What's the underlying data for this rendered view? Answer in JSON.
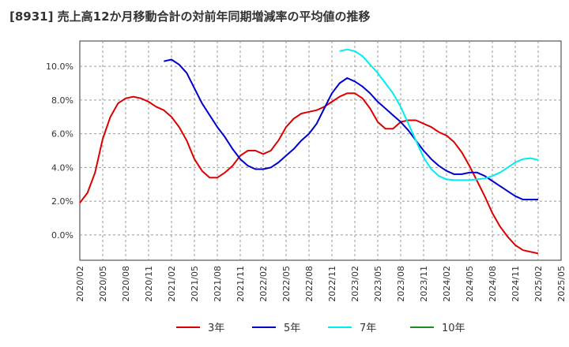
{
  "chart_data": {
    "type": "line",
    "title": "[8931]  売上高12か月移動合計の対前年同期増減率の平均値の推移",
    "xlabel": "",
    "ylabel": "",
    "x_start": "2020/02",
    "x_ticks": [
      "2020/02",
      "2020/05",
      "2020/08",
      "2020/11",
      "2021/02",
      "2021/05",
      "2021/08",
      "2021/11",
      "2022/02",
      "2022/05",
      "2022/08",
      "2022/11",
      "2023/02",
      "2023/05",
      "2023/08",
      "2023/11",
      "2024/02",
      "2024/05",
      "2024/08",
      "2024/11",
      "2025/02",
      "2025/05"
    ],
    "y_ticks": [
      "0.0%",
      "2.0%",
      "4.0%",
      "6.0%",
      "8.0%",
      "10.0%"
    ],
    "y_tick_values": [
      0,
      2,
      4,
      6,
      8,
      10
    ],
    "ylim": [
      -1.5,
      11.5
    ],
    "grid": true,
    "legend_position": "bottom",
    "series": [
      {
        "name": "3年",
        "color": "#dd0000",
        "values": [
          {
            "x": "2020/02",
            "y": 1.9
          },
          {
            "x": "2020/03",
            "y": 2.5
          },
          {
            "x": "2020/04",
            "y": 3.7
          },
          {
            "x": "2020/05",
            "y": 5.7
          },
          {
            "x": "2020/06",
            "y": 7.0
          },
          {
            "x": "2020/07",
            "y": 7.8
          },
          {
            "x": "2020/08",
            "y": 8.1
          },
          {
            "x": "2020/09",
            "y": 8.2
          },
          {
            "x": "2020/10",
            "y": 8.1
          },
          {
            "x": "2020/11",
            "y": 7.9
          },
          {
            "x": "2020/12",
            "y": 7.6
          },
          {
            "x": "2021/01",
            "y": 7.4
          },
          {
            "x": "2021/02",
            "y": 7.0
          },
          {
            "x": "2021/03",
            "y": 6.4
          },
          {
            "x": "2021/04",
            "y": 5.6
          },
          {
            "x": "2021/05",
            "y": 4.5
          },
          {
            "x": "2021/06",
            "y": 3.8
          },
          {
            "x": "2021/07",
            "y": 3.4
          },
          {
            "x": "2021/08",
            "y": 3.4
          },
          {
            "x": "2021/09",
            "y": 3.7
          },
          {
            "x": "2021/10",
            "y": 4.1
          },
          {
            "x": "2021/11",
            "y": 4.7
          },
          {
            "x": "2021/12",
            "y": 5.0
          },
          {
            "x": "2022/01",
            "y": 5.0
          },
          {
            "x": "2022/02",
            "y": 4.8
          },
          {
            "x": "2022/03",
            "y": 5.0
          },
          {
            "x": "2022/04",
            "y": 5.6
          },
          {
            "x": "2022/05",
            "y": 6.4
          },
          {
            "x": "2022/06",
            "y": 6.9
          },
          {
            "x": "2022/07",
            "y": 7.2
          },
          {
            "x": "2022/08",
            "y": 7.3
          },
          {
            "x": "2022/09",
            "y": 7.4
          },
          {
            "x": "2022/10",
            "y": 7.6
          },
          {
            "x": "2022/11",
            "y": 7.9
          },
          {
            "x": "2022/12",
            "y": 8.2
          },
          {
            "x": "2023/01",
            "y": 8.4
          },
          {
            "x": "2023/02",
            "y": 8.4
          },
          {
            "x": "2023/03",
            "y": 8.1
          },
          {
            "x": "2023/04",
            "y": 7.5
          },
          {
            "x": "2023/05",
            "y": 6.7
          },
          {
            "x": "2023/06",
            "y": 6.3
          },
          {
            "x": "2023/07",
            "y": 6.3
          },
          {
            "x": "2023/08",
            "y": 6.7
          },
          {
            "x": "2023/09",
            "y": 6.8
          },
          {
            "x": "2023/10",
            "y": 6.8
          },
          {
            "x": "2023/11",
            "y": 6.6
          },
          {
            "x": "2023/12",
            "y": 6.4
          },
          {
            "x": "2024/01",
            "y": 6.1
          },
          {
            "x": "2024/02",
            "y": 5.9
          },
          {
            "x": "2024/03",
            "y": 5.5
          },
          {
            "x": "2024/04",
            "y": 4.9
          },
          {
            "x": "2024/05",
            "y": 4.1
          },
          {
            "x": "2024/06",
            "y": 3.2
          },
          {
            "x": "2024/07",
            "y": 2.3
          },
          {
            "x": "2024/08",
            "y": 1.3
          },
          {
            "x": "2024/09",
            "y": 0.5
          },
          {
            "x": "2024/10",
            "y": -0.1
          },
          {
            "x": "2024/11",
            "y": -0.6
          },
          {
            "x": "2024/12",
            "y": -0.9
          },
          {
            "x": "2025/01",
            "y": -1.0
          },
          {
            "x": "2025/02",
            "y": -1.1
          }
        ]
      },
      {
        "name": "5年",
        "color": "#0000cc",
        "values": [
          {
            "x": "2021/01",
            "y": 10.3
          },
          {
            "x": "2021/02",
            "y": 10.4
          },
          {
            "x": "2021/03",
            "y": 10.1
          },
          {
            "x": "2021/04",
            "y": 9.6
          },
          {
            "x": "2021/05",
            "y": 8.7
          },
          {
            "x": "2021/06",
            "y": 7.8
          },
          {
            "x": "2021/07",
            "y": 7.1
          },
          {
            "x": "2021/08",
            "y": 6.4
          },
          {
            "x": "2021/09",
            "y": 5.8
          },
          {
            "x": "2021/10",
            "y": 5.1
          },
          {
            "x": "2021/11",
            "y": 4.5
          },
          {
            "x": "2021/12",
            "y": 4.1
          },
          {
            "x": "2022/01",
            "y": 3.9
          },
          {
            "x": "2022/02",
            "y": 3.9
          },
          {
            "x": "2022/03",
            "y": 4.0
          },
          {
            "x": "2022/04",
            "y": 4.3
          },
          {
            "x": "2022/05",
            "y": 4.7
          },
          {
            "x": "2022/06",
            "y": 5.1
          },
          {
            "x": "2022/07",
            "y": 5.6
          },
          {
            "x": "2022/08",
            "y": 6.0
          },
          {
            "x": "2022/09",
            "y": 6.6
          },
          {
            "x": "2022/10",
            "y": 7.5
          },
          {
            "x": "2022/11",
            "y": 8.4
          },
          {
            "x": "2022/12",
            "y": 9.0
          },
          {
            "x": "2023/01",
            "y": 9.3
          },
          {
            "x": "2023/02",
            "y": 9.1
          },
          {
            "x": "2023/03",
            "y": 8.8
          },
          {
            "x": "2023/04",
            "y": 8.4
          },
          {
            "x": "2023/05",
            "y": 7.9
          },
          {
            "x": "2023/06",
            "y": 7.5
          },
          {
            "x": "2023/07",
            "y": 7.1
          },
          {
            "x": "2023/08",
            "y": 6.7
          },
          {
            "x": "2023/09",
            "y": 6.2
          },
          {
            "x": "2023/10",
            "y": 5.6
          },
          {
            "x": "2023/11",
            "y": 5.0
          },
          {
            "x": "2023/12",
            "y": 4.5
          },
          {
            "x": "2024/01",
            "y": 4.1
          },
          {
            "x": "2024/02",
            "y": 3.8
          },
          {
            "x": "2024/03",
            "y": 3.6
          },
          {
            "x": "2024/04",
            "y": 3.6
          },
          {
            "x": "2024/05",
            "y": 3.7
          },
          {
            "x": "2024/06",
            "y": 3.7
          },
          {
            "x": "2024/07",
            "y": 3.5
          },
          {
            "x": "2024/08",
            "y": 3.2
          },
          {
            "x": "2024/09",
            "y": 2.9
          },
          {
            "x": "2024/10",
            "y": 2.6
          },
          {
            "x": "2024/11",
            "y": 2.3
          },
          {
            "x": "2024/12",
            "y": 2.1
          },
          {
            "x": "2025/01",
            "y": 2.1
          },
          {
            "x": "2025/02",
            "y": 2.1
          }
        ]
      },
      {
        "name": "7年",
        "color": "#00eeee",
        "values": [
          {
            "x": "2022/12",
            "y": 10.9
          },
          {
            "x": "2023/01",
            "y": 11.0
          },
          {
            "x": "2023/02",
            "y": 10.9
          },
          {
            "x": "2023/03",
            "y": 10.6
          },
          {
            "x": "2023/04",
            "y": 10.1
          },
          {
            "x": "2023/05",
            "y": 9.6
          },
          {
            "x": "2023/06",
            "y": 9.0
          },
          {
            "x": "2023/07",
            "y": 8.4
          },
          {
            "x": "2023/08",
            "y": 7.6
          },
          {
            "x": "2023/09",
            "y": 6.6
          },
          {
            "x": "2023/10",
            "y": 5.6
          },
          {
            "x": "2023/11",
            "y": 4.6
          },
          {
            "x": "2023/12",
            "y": 3.9
          },
          {
            "x": "2024/01",
            "y": 3.5
          },
          {
            "x": "2024/02",
            "y": 3.3
          },
          {
            "x": "2024/03",
            "y": 3.25
          },
          {
            "x": "2024/04",
            "y": 3.25
          },
          {
            "x": "2024/05",
            "y": 3.25
          },
          {
            "x": "2024/06",
            "y": 3.3
          },
          {
            "x": "2024/07",
            "y": 3.35
          },
          {
            "x": "2024/08",
            "y": 3.5
          },
          {
            "x": "2024/09",
            "y": 3.7
          },
          {
            "x": "2024/10",
            "y": 4.0
          },
          {
            "x": "2024/11",
            "y": 4.3
          },
          {
            "x": "2024/12",
            "y": 4.5
          },
          {
            "x": "2025/01",
            "y": 4.55
          },
          {
            "x": "2025/02",
            "y": 4.45
          }
        ]
      },
      {
        "name": "10年",
        "color": "#228b22",
        "values": []
      }
    ]
  }
}
